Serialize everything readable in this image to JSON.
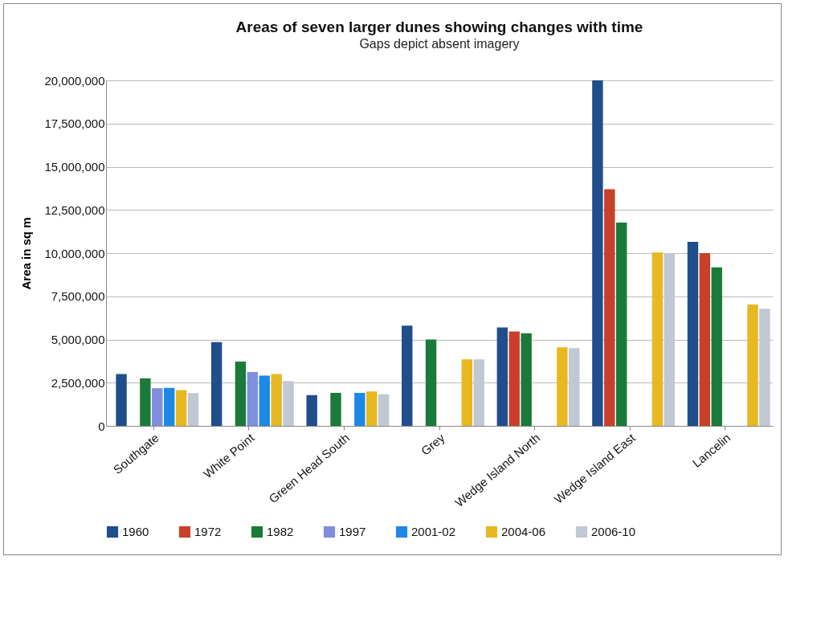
{
  "chart_data": {
    "type": "bar",
    "title": "Areas of seven larger dunes showing changes with time",
    "subtitle": "Gaps depict absent imagery",
    "ylabel": "Area in sq m",
    "categories": [
      "Southgate",
      "White Point",
      "Green Head South",
      "Grey",
      "Wedge Island North",
      "Wedge Island East",
      "Lancelin"
    ],
    "series": [
      {
        "name": "1960",
        "color": "#1f4e8c",
        "values": [
          3000000,
          4850000,
          1780000,
          5800000,
          5700000,
          20000000,
          10650000
        ]
      },
      {
        "name": "1972",
        "color": "#c8402a",
        "values": [
          null,
          null,
          null,
          null,
          5470000,
          13700000,
          10000000
        ]
      },
      {
        "name": "1982",
        "color": "#1a7a3a",
        "values": [
          2750000,
          3720000,
          1910000,
          5000000,
          5360000,
          11770000,
          9180000
        ]
      },
      {
        "name": "1997",
        "color": "#7f8fdc",
        "values": [
          2180000,
          3120000,
          null,
          null,
          null,
          null,
          null
        ]
      },
      {
        "name": "2001-02",
        "color": "#1e88e5",
        "values": [
          2200000,
          2910000,
          1910000,
          null,
          null,
          null,
          null
        ]
      },
      {
        "name": "2004-06",
        "color": "#e8b820",
        "values": [
          2070000,
          3000000,
          1990000,
          3850000,
          4550000,
          10030000,
          7020000
        ]
      },
      {
        "name": "2006-10",
        "color": "#c0c8d4",
        "values": [
          1900000,
          2590000,
          1830000,
          3850000,
          4500000,
          10000000,
          6780000
        ]
      }
    ],
    "ylim": [
      0,
      20000000
    ],
    "yticks": [
      0,
      {
        "value": 2500000,
        "label": "2,500,000"
      },
      {
        "value": 5000000,
        "label": "5,000,000"
      },
      {
        "value": 7500000,
        "label": "7,500,000"
      },
      {
        "value": 10000000,
        "label": "10,000,000"
      },
      {
        "value": 12500000,
        "label": "12,500,000"
      },
      {
        "value": 15000000,
        "label": "15,000,000"
      },
      {
        "value": 17500000,
        "label": "17,500,000"
      },
      {
        "value": 20000000,
        "label": "20,000,000"
      }
    ],
    "grid": "y",
    "legend": "bottom"
  }
}
